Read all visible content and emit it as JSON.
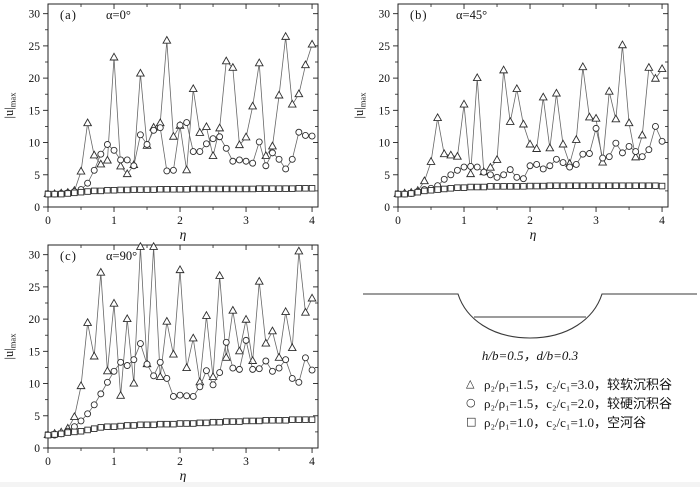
{
  "figure": {
    "axes": {
      "xlabel": "η",
      "ylabel_base": "|u|",
      "ylabel_sub": "max",
      "yticks": [
        0,
        5,
        10,
        15,
        20,
        25,
        30
      ],
      "xticks": [
        0,
        1,
        2,
        3,
        4
      ]
    },
    "panels": [
      {
        "label": "(a)",
        "alpha": "α=0°"
      },
      {
        "label": "(b)",
        "alpha": "α=45°"
      },
      {
        "label": "(c)",
        "alpha": "α=90°"
      }
    ]
  },
  "chart_data": [
    {
      "type": "line",
      "panel_label": "(a)",
      "alpha_label": "α=0°",
      "xlabel": "η",
      "ylabel": "|u|max",
      "xlim": [
        0,
        4.09
      ],
      "ylim": [
        0,
        31.5
      ],
      "x": [
        0,
        0.1,
        0.2,
        0.3,
        0.4,
        0.5,
        0.6,
        0.7,
        0.8,
        0.9,
        1.0,
        1.1,
        1.2,
        1.3,
        1.4,
        1.5,
        1.6,
        1.7,
        1.8,
        1.9,
        2.0,
        2.1,
        2.2,
        2.3,
        2.4,
        2.5,
        2.6,
        2.7,
        2.8,
        2.9,
        3.0,
        3.1,
        3.2,
        3.3,
        3.4,
        3.5,
        3.6,
        3.7,
        3.8,
        3.9,
        4.0
      ],
      "series": [
        {
          "name": "ρ₂/ρ₁=1.5，c₂/c₁=3.0，较软沉积谷",
          "marker": "triangle",
          "values": [
            2,
            2,
            2.1,
            2.2,
            2.5,
            5.5,
            13,
            8,
            6.6,
            7.2,
            23.2,
            6.3,
            5.1,
            6.5,
            20.7,
            9.5,
            12.3,
            13,
            25.8,
            10.9,
            12.6,
            5.7,
            18.3,
            11.5,
            12.4,
            7.9,
            12.2,
            22.6,
            21.6,
            9.6,
            10.8,
            15.6,
            22.3,
            7.9,
            9.4,
            17.3,
            26.4,
            15.9,
            17.5,
            22,
            25.2
          ]
        },
        {
          "name": "ρ₂/ρ₁=1.5，c₂/c₁=2.0，较硬沉积谷",
          "marker": "circle",
          "values": [
            2,
            2,
            2.1,
            2.2,
            2.4,
            2.7,
            3.7,
            5.7,
            8.2,
            9.7,
            8.8,
            7.3,
            7.3,
            6.4,
            11.2,
            9.7,
            11.9,
            12.3,
            5.6,
            5.7,
            12.7,
            13.1,
            8.6,
            8.6,
            9.8,
            10.6,
            10.9,
            9.1,
            7.1,
            7.3,
            7.1,
            6.8,
            10.1,
            6.4,
            8.4,
            7.4,
            5.9,
            7.4,
            11.6,
            11.1,
            11
          ]
        },
        {
          "name": "ρ₂/ρ₁=1.0，c₂/c₁=1.0，空河谷",
          "marker": "square",
          "values": [
            2,
            2,
            2,
            2.1,
            2.2,
            2.3,
            2.4,
            2.5,
            2.5,
            2.6,
            2.6,
            2.65,
            2.65,
            2.7,
            2.7,
            2.7,
            2.7,
            2.75,
            2.75,
            2.75,
            2.75,
            2.75,
            2.8,
            2.8,
            2.8,
            2.8,
            2.8,
            2.8,
            2.8,
            2.8,
            2.8,
            2.8,
            2.85,
            2.85,
            2.85,
            2.85,
            2.85,
            2.85,
            2.9,
            2.9,
            2.9
          ]
        }
      ]
    },
    {
      "type": "line",
      "panel_label": "(b)",
      "alpha_label": "α=45°",
      "xlabel": "η",
      "ylabel": "|u|max",
      "xlim": [
        0,
        4.09
      ],
      "ylim": [
        0,
        31.5
      ],
      "x": [
        0,
        0.1,
        0.2,
        0.3,
        0.4,
        0.5,
        0.6,
        0.7,
        0.8,
        0.9,
        1.0,
        1.1,
        1.2,
        1.3,
        1.4,
        1.5,
        1.6,
        1.7,
        1.8,
        1.9,
        2.0,
        2.1,
        2.2,
        2.3,
        2.4,
        2.5,
        2.6,
        2.7,
        2.8,
        2.9,
        3.0,
        3.1,
        3.2,
        3.3,
        3.4,
        3.5,
        3.6,
        3.7,
        3.8,
        3.9,
        4.0
      ],
      "series": [
        {
          "name": "ρ₂/ρ₁=1.5，c₂/c₁=3.0，较软沉积谷",
          "marker": "triangle",
          "values": [
            2,
            2.1,
            2.2,
            2.5,
            4,
            7,
            13.8,
            8.2,
            8,
            7.8,
            15.9,
            5.1,
            20,
            5.4,
            6.1,
            7.3,
            21.2,
            13.2,
            18.3,
            12.8,
            9.7,
            9,
            17,
            9.1,
            17.6,
            9.7,
            6.7,
            10.4,
            21.7,
            13.9,
            13.7,
            6.9,
            17.9,
            13.6,
            25.1,
            13,
            7.7,
            11.1,
            21.6,
            19.9,
            21.4
          ]
        },
        {
          "name": "ρ₂/ρ₁=1.5，c₂/c₁=2.0，较硬沉积谷",
          "marker": "circle",
          "values": [
            2,
            2,
            2.1,
            2.4,
            2.7,
            2.9,
            3.3,
            4.3,
            5,
            5.7,
            6.2,
            6.3,
            6.2,
            5.4,
            5,
            4.6,
            5,
            5.8,
            4.6,
            4.4,
            6.4,
            6.6,
            5.9,
            6.4,
            7.4,
            6.9,
            6.2,
            6.6,
            8.2,
            8.3,
            12.2,
            7.6,
            7.8,
            9.9,
            8.4,
            9.4,
            8.6,
            7.8,
            8.9,
            12.5,
            10.2
          ]
        },
        {
          "name": "ρ₂/ρ₁=1.0，c₂/c₁=1.0，空河谷",
          "marker": "square",
          "values": [
            2,
            2,
            2.1,
            2.3,
            2.5,
            2.6,
            2.7,
            2.8,
            2.9,
            3,
            3,
            3.1,
            3.1,
            3.1,
            3.2,
            3.2,
            3.2,
            3.2,
            3.2,
            3.2,
            3.25,
            3.25,
            3.25,
            3.3,
            3.3,
            3.3,
            3.3,
            3.3,
            3.3,
            3.3,
            3.3,
            3.3,
            3.3,
            3.3,
            3.3,
            3.3,
            3.3,
            3.3,
            3.3,
            3.3,
            3.25
          ]
        }
      ]
    },
    {
      "type": "line",
      "panel_label": "(c)",
      "alpha_label": "α=90°",
      "xlabel": "η",
      "ylabel": "|u|max",
      "xlim": [
        0,
        4.09
      ],
      "ylim": [
        0,
        31.5
      ],
      "x": [
        0,
        0.1,
        0.2,
        0.3,
        0.4,
        0.5,
        0.6,
        0.7,
        0.8,
        0.9,
        1.0,
        1.1,
        1.2,
        1.3,
        1.4,
        1.5,
        1.6,
        1.7,
        1.8,
        1.9,
        2.0,
        2.1,
        2.2,
        2.3,
        2.4,
        2.5,
        2.6,
        2.7,
        2.8,
        2.9,
        3.0,
        3.1,
        3.2,
        3.3,
        3.4,
        3.5,
        3.6,
        3.7,
        3.8,
        3.9,
        4.0
      ],
      "series": [
        {
          "name": "ρ₂/ρ₁=1.5，c₂/c₁=3.0，较软沉积谷",
          "marker": "triangle",
          "values": [
            2,
            2.2,
            2.4,
            3,
            4.8,
            9.6,
            19.4,
            14.2,
            27.2,
            11.9,
            22.4,
            8.1,
            20,
            10,
            31.2,
            13,
            31.2,
            11,
            19.6,
            14.5,
            27.6,
            12.4,
            17,
            10.2,
            20.5,
            11,
            26.7,
            14,
            21.3,
            15,
            19.9,
            13.5,
            25.8,
            16.2,
            18.1,
            14,
            21.1,
            15.5,
            30.5,
            21,
            23.2
          ]
        },
        {
          "name": "ρ₂/ρ₁=1.5，c₂/c₁=2.0，较硬沉积谷",
          "marker": "circle",
          "values": [
            2,
            2,
            2.2,
            2.6,
            3.3,
            4.2,
            5.3,
            6.7,
            8.4,
            10.2,
            11.9,
            13.3,
            12.8,
            13.7,
            16.2,
            13,
            11.2,
            13.3,
            10.8,
            8,
            8.2,
            8.1,
            8,
            9.5,
            12,
            9.8,
            11.7,
            16.4,
            12.4,
            12.2,
            16.7,
            12.2,
            12.3,
            13.5,
            11.9,
            12.4,
            13.7,
            10.8,
            10.2,
            14,
            12.1
          ]
        },
        {
          "name": "ρ₂/ρ₁=1.0，c₂/c₁=1.0，空河谷",
          "marker": "square",
          "values": [
            2,
            2.1,
            2.2,
            2.4,
            2.5,
            2.6,
            2.8,
            3,
            3.2,
            3.3,
            3.3,
            3.4,
            3.5,
            3.5,
            3.6,
            3.6,
            3.6,
            3.7,
            3.7,
            3.7,
            3.8,
            3.8,
            3.8,
            3.9,
            3.9,
            4,
            4,
            4.1,
            4.1,
            4.1,
            4.2,
            4.2,
            4.2,
            4.3,
            4.3,
            4.3,
            4.3,
            4.4,
            4.4,
            4.4,
            4.4
          ]
        }
      ]
    }
  ],
  "legend": {
    "caption": "h/b=0.5，d/b=0.3",
    "items": [
      {
        "glyph": "△",
        "label": "ρ₂/ρ₁=1.5，c₂/c₁=3.0，较软沉积谷"
      },
      {
        "glyph": "○",
        "label": "ρ₂/ρ₁=1.5，c₂/c₁=2.0，较硬沉积谷"
      },
      {
        "glyph": "□",
        "label": "ρ₂/ρ₁=1.0，c₂/c₁=1.0，空河谷"
      }
    ]
  }
}
